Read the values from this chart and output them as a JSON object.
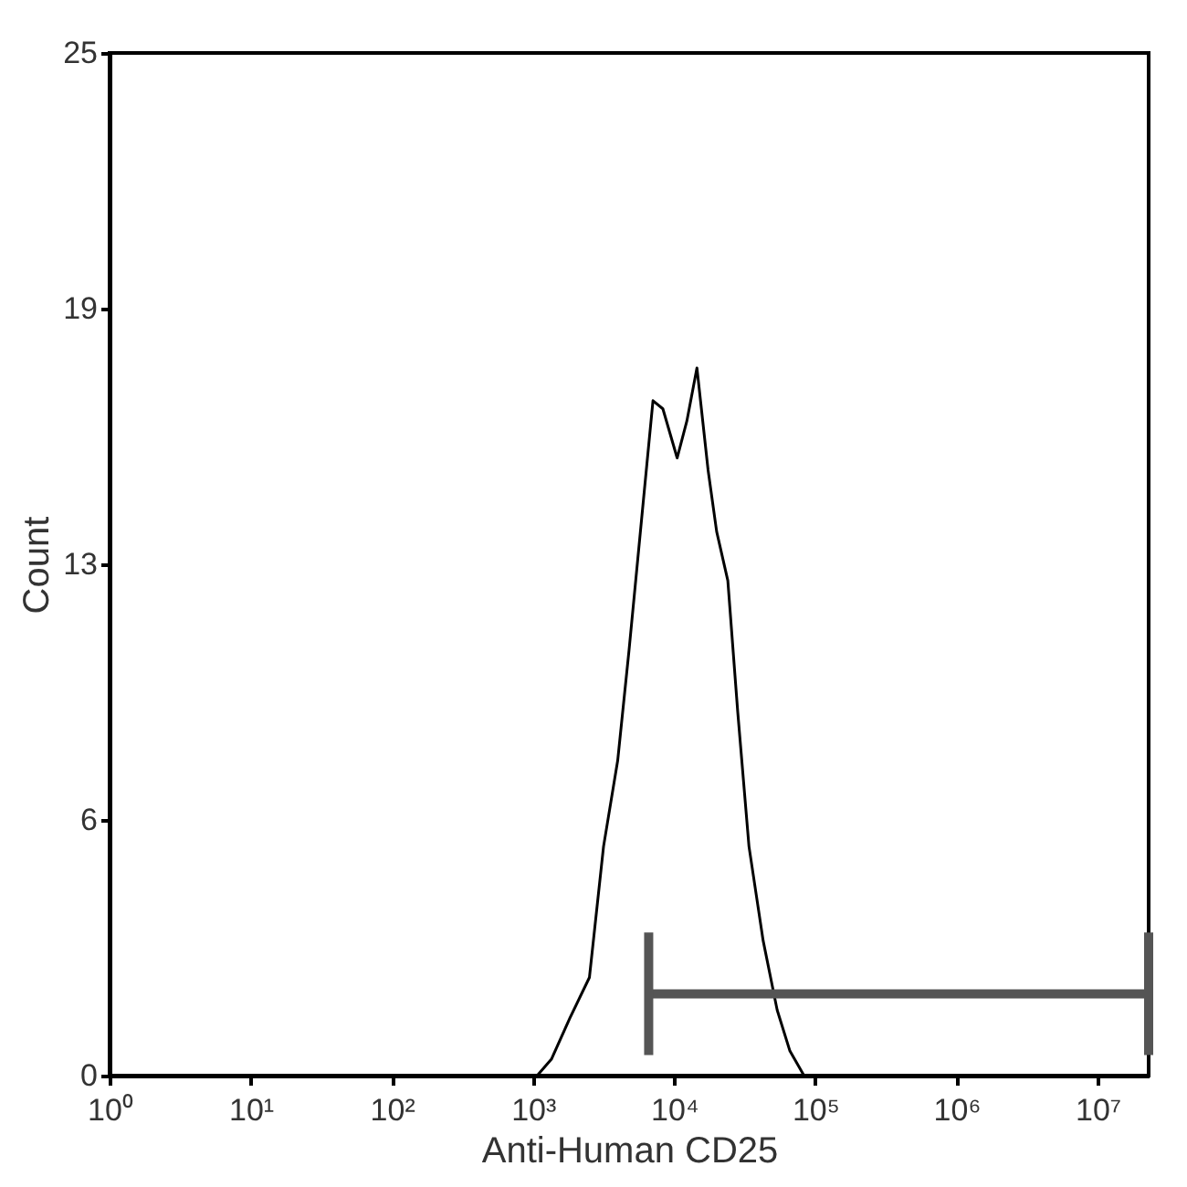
{
  "chart_data": {
    "type": "line",
    "xlabel": "Anti-Human CD25",
    "ylabel": "Count",
    "log": "x",
    "grid": false,
    "marker": "none",
    "line_style": "solid",
    "xlim": [
      1,
      23000000
    ],
    "ylim": [
      0,
      25
    ],
    "xticks": [
      {
        "value": 1,
        "label": "10⁰"
      },
      {
        "value": 10,
        "label": "10¹"
      },
      {
        "value": 100,
        "label": "10²"
      },
      {
        "value": 1000,
        "label": "10³"
      },
      {
        "value": 10000,
        "label": "10⁴"
      },
      {
        "value": 100000,
        "label": "10⁵"
      },
      {
        "value": 1000000,
        "label": "10⁶"
      },
      {
        "value": 10000000,
        "label": "10⁷"
      }
    ],
    "yticks": [
      0,
      {
        "value": 6.25,
        "label": "6"
      },
      {
        "value": 12.5,
        "label": "13"
      },
      {
        "value": 18.75,
        "label": "19"
      },
      25
    ],
    "series": [
      {
        "color": "#000000",
        "x": [
          1070,
          1350,
          1820,
          2510,
          3160,
          3980,
          4790,
          6030,
          7080,
          8320,
          10500,
          12300,
          14500,
          17400,
          20000,
          24000,
          28200,
          33900,
          42700,
          53700,
          66100,
          83200
        ],
        "values": [
          0,
          0.4,
          1.4,
          2.4,
          5.6,
          7.7,
          10.4,
          14.0,
          16.5,
          16.3,
          15.1,
          16.0,
          17.3,
          14.8,
          13.3,
          12.1,
          8.9,
          5.6,
          3.3,
          1.6,
          0.6,
          0
        ]
      },
      {
        "type": "line",
        "color": "#555555",
        "x": [
          6600,
          23000000
        ],
        "values": [
          2,
          2
        ],
        "errors": [
          1.5,
          1.5
        ]
      }
    ]
  }
}
